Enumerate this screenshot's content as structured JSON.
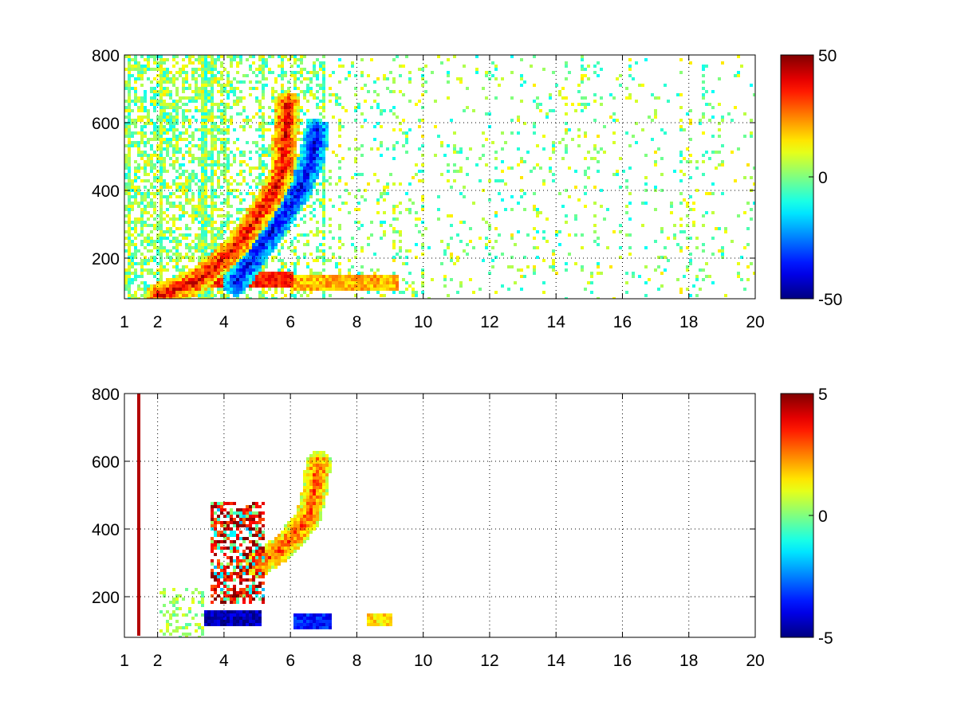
{
  "chart_data": [
    {
      "type": "heatmap",
      "title": "",
      "xlabel": "",
      "ylabel": "",
      "xlim": [
        1,
        20
      ],
      "ylim": [
        80,
        800
      ],
      "xticks": [
        1,
        2,
        4,
        6,
        8,
        10,
        12,
        14,
        16,
        18,
        20
      ],
      "xtick_labels": [
        "1",
        "2",
        "4",
        "6",
        "8",
        "10",
        "12",
        "14",
        "16",
        "18",
        "20"
      ],
      "yticks": [
        200,
        400,
        600,
        800
      ],
      "ytick_labels": [
        "200",
        "400",
        "600",
        "800"
      ],
      "grid": true,
      "colormap": "jet",
      "clim": [
        -50,
        50
      ],
      "colorbar_ticks": [
        50,
        0,
        -50
      ],
      "colorbar_tick_labels": [
        "50",
        "0",
        "-50"
      ],
      "features": [
        {
          "kind": "curve_band",
          "value": 40,
          "points": [
            [
              2.0,
              95
            ],
            [
              3.0,
              130
            ],
            [
              3.8,
              190
            ],
            [
              4.4,
              250
            ],
            [
              4.9,
              320
            ],
            [
              5.4,
              390
            ],
            [
              5.7,
              460
            ],
            [
              5.8,
              560
            ],
            [
              5.85,
              660
            ]
          ]
        },
        {
          "kind": "curve_band",
          "value": -40,
          "points": [
            [
              4.3,
              130
            ],
            [
              4.8,
              200
            ],
            [
              5.3,
              270
            ],
            [
              5.8,
              340
            ],
            [
              6.3,
              420
            ],
            [
              6.6,
              500
            ],
            [
              6.75,
              580
            ]
          ]
        },
        {
          "kind": "horizontal_band",
          "value": 35,
          "y": 140,
          "x_range": [
            2.8,
            6.0
          ]
        },
        {
          "kind": "horizontal_band",
          "value": 20,
          "y": 130,
          "x_range": [
            6.0,
            9.2
          ]
        }
      ]
    },
    {
      "type": "heatmap",
      "title": "",
      "xlabel": "",
      "ylabel": "",
      "xlim": [
        1,
        20
      ],
      "ylim": [
        80,
        800
      ],
      "xticks": [
        1,
        2,
        4,
        6,
        8,
        10,
        12,
        14,
        16,
        18,
        20
      ],
      "xtick_labels": [
        "1",
        "2",
        "4",
        "6",
        "8",
        "10",
        "12",
        "14",
        "16",
        "18",
        "20"
      ],
      "yticks": [
        200,
        400,
        600,
        800
      ],
      "ytick_labels": [
        "200",
        "400",
        "600",
        "800"
      ],
      "grid": true,
      "colormap": "jet",
      "clim": [
        -5,
        5
      ],
      "colorbar_ticks": [
        5,
        0,
        -5
      ],
      "colorbar_tick_labels": [
        "5",
        "0",
        "-5"
      ],
      "features": [
        {
          "kind": "cluster",
          "value": 4,
          "x_range": [
            3.5,
            5.2
          ],
          "y_range": [
            180,
            480
          ]
        },
        {
          "kind": "curve_band",
          "value": 3,
          "points": [
            [
              5.0,
              300
            ],
            [
              5.6,
              340
            ],
            [
              6.1,
              390
            ],
            [
              6.5,
              440
            ],
            [
              6.7,
              520
            ],
            [
              6.8,
              600
            ]
          ]
        },
        {
          "kind": "horizontal_band",
          "value": -4.5,
          "y": 140,
          "x_range": [
            3.4,
            5.1
          ]
        },
        {
          "kind": "horizontal_band",
          "value": -3.5,
          "y": 130,
          "x_range": [
            6.0,
            7.2
          ]
        },
        {
          "kind": "horizontal_band",
          "value": 1.5,
          "y": 135,
          "x_range": [
            8.3,
            9.0
          ]
        },
        {
          "kind": "vertical_line",
          "value": 4.5,
          "x": 1.4,
          "y_range": [
            90,
            800
          ]
        }
      ]
    }
  ]
}
